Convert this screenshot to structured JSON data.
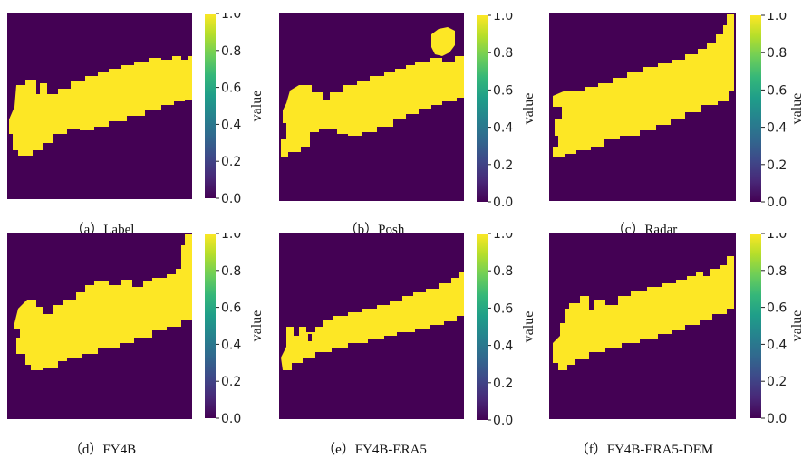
{
  "colors": {
    "background": "#440154",
    "mask": "#fde725"
  },
  "chart_data": [
    {
      "type": "heatmap",
      "caption": "（a）Label",
      "colorbar": {
        "label": "value",
        "min": 0.0,
        "max": 1.0,
        "ticks": [
          "0.0",
          "0.2",
          "0.4",
          "0.6",
          "0.8",
          "1.0"
        ]
      }
    },
    {
      "type": "heatmap",
      "caption": "（b）Posh",
      "colorbar": {
        "label": "value",
        "min": 0.0,
        "max": 1.0,
        "ticks": [
          "0.0",
          "0.2",
          "0.4",
          "0.6",
          "0.8",
          "1.0"
        ]
      }
    },
    {
      "type": "heatmap",
      "caption": "（c）Radar",
      "colorbar": {
        "label": "value",
        "min": 0.0,
        "max": 1.0,
        "ticks": [
          "0.0",
          "0.2",
          "0.4",
          "0.6",
          "0.8",
          "1.0"
        ]
      }
    },
    {
      "type": "heatmap",
      "caption": "（d）FY4B",
      "colorbar": {
        "label": "value",
        "min": 0.0,
        "max": 1.0,
        "ticks": [
          "0.0",
          "0.2",
          "0.4",
          "0.6",
          "0.8",
          "1.0"
        ]
      }
    },
    {
      "type": "heatmap",
      "caption": "（e）FY4B-ERA5",
      "colorbar": {
        "label": "value",
        "min": 0.0,
        "max": 1.0,
        "ticks": [
          "0.0",
          "0.2",
          "0.4",
          "0.6",
          "0.8",
          "1.0"
        ]
      }
    },
    {
      "type": "heatmap",
      "caption": "（f）FY4B-ERA5-DEM",
      "colorbar": {
        "label": "value",
        "min": 0.0,
        "max": 1.0,
        "ticks": [
          "0.0",
          "0.2",
          "0.4",
          "0.6",
          "0.8",
          "1.0"
        ]
      }
    }
  ]
}
